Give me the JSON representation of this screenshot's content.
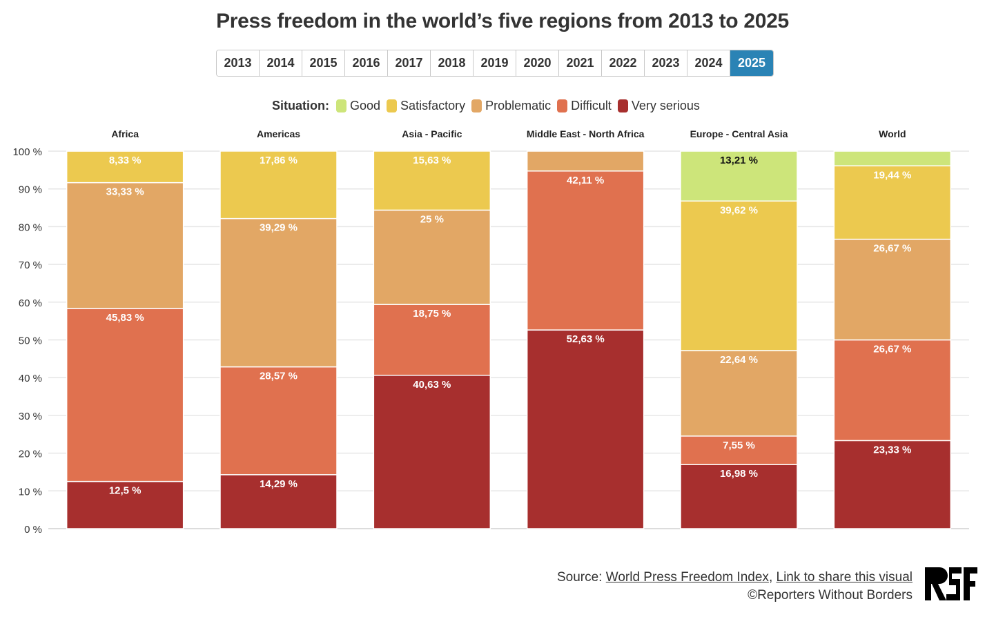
{
  "title": "Press freedom in the world’s five regions from 2013 to 2025",
  "years": [
    "2013",
    "2014",
    "2015",
    "2016",
    "2017",
    "2018",
    "2019",
    "2020",
    "2021",
    "2022",
    "2023",
    "2024",
    "2025"
  ],
  "selected_year": "2025",
  "legend": {
    "label": "Situation:",
    "items": [
      {
        "name": "Good",
        "color": "#cde57a"
      },
      {
        "name": "Satisfactory",
        "color": "#ecc94f"
      },
      {
        "name": "Problematic",
        "color": "#e2a765"
      },
      {
        "name": "Difficult",
        "color": "#e0714f"
      },
      {
        "name": "Very serious",
        "color": "#a72f2e"
      }
    ]
  },
  "chart_data": {
    "type": "bar",
    "stacked": true,
    "categories": [
      "Africa",
      "Americas",
      "Asia - Pacific",
      "Middle East - North Africa",
      "Europe - Central Asia",
      "World"
    ],
    "ylim": [
      0,
      100
    ],
    "yticks": [
      0,
      10,
      20,
      30,
      40,
      50,
      60,
      70,
      80,
      90,
      100
    ],
    "ytick_labels": [
      "0 %",
      "10 %",
      "20 %",
      "30 %",
      "40 %",
      "50 %",
      "60 %",
      "70 %",
      "80 %",
      "90 %",
      "100 %"
    ],
    "grid": true,
    "series": [
      {
        "name": "Very serious",
        "color": "#a72f2e",
        "values": [
          12.5,
          14.29,
          40.63,
          52.63,
          16.98,
          23.33
        ]
      },
      {
        "name": "Difficult",
        "color": "#e0714f",
        "values": [
          45.83,
          28.57,
          18.75,
          42.11,
          7.55,
          26.67
        ]
      },
      {
        "name": "Problematic",
        "color": "#e2a765",
        "values": [
          33.33,
          39.29,
          25,
          5.26,
          22.64,
          26.67
        ]
      },
      {
        "name": "Satisfactory",
        "color": "#ecc94f",
        "values": [
          8.33,
          17.86,
          15.63,
          0,
          39.62,
          19.44
        ]
      },
      {
        "name": "Good",
        "color": "#cde57a",
        "values": [
          0,
          0,
          0,
          0,
          13.21,
          3.89
        ]
      }
    ],
    "data_labels": [
      [
        "12,5 %",
        "14,29 %",
        "40,63 %",
        "52,63 %",
        "16,98 %",
        "23,33 %"
      ],
      [
        "45,83 %",
        "28,57 %",
        "18,75 %",
        "42,11 %",
        "7,55 %",
        "26,67 %"
      ],
      [
        "33,33 %",
        "39,29 %",
        "25 %",
        "",
        "22,64 %",
        "26,67 %"
      ],
      [
        "8,33 %",
        "17,86 %",
        "15,63 %",
        "",
        "39,62 %",
        "19,44 %"
      ],
      [
        "",
        "",
        "",
        "",
        "13,21 %",
        ""
      ]
    ]
  },
  "footer": {
    "source_prefix": "Source: ",
    "source_link": "World Press Freedom Index",
    "separator": ", ",
    "share_link": "Link to share this visual",
    "copyright": "©Reporters Without Borders"
  },
  "logo": {
    "text": "RSF"
  }
}
